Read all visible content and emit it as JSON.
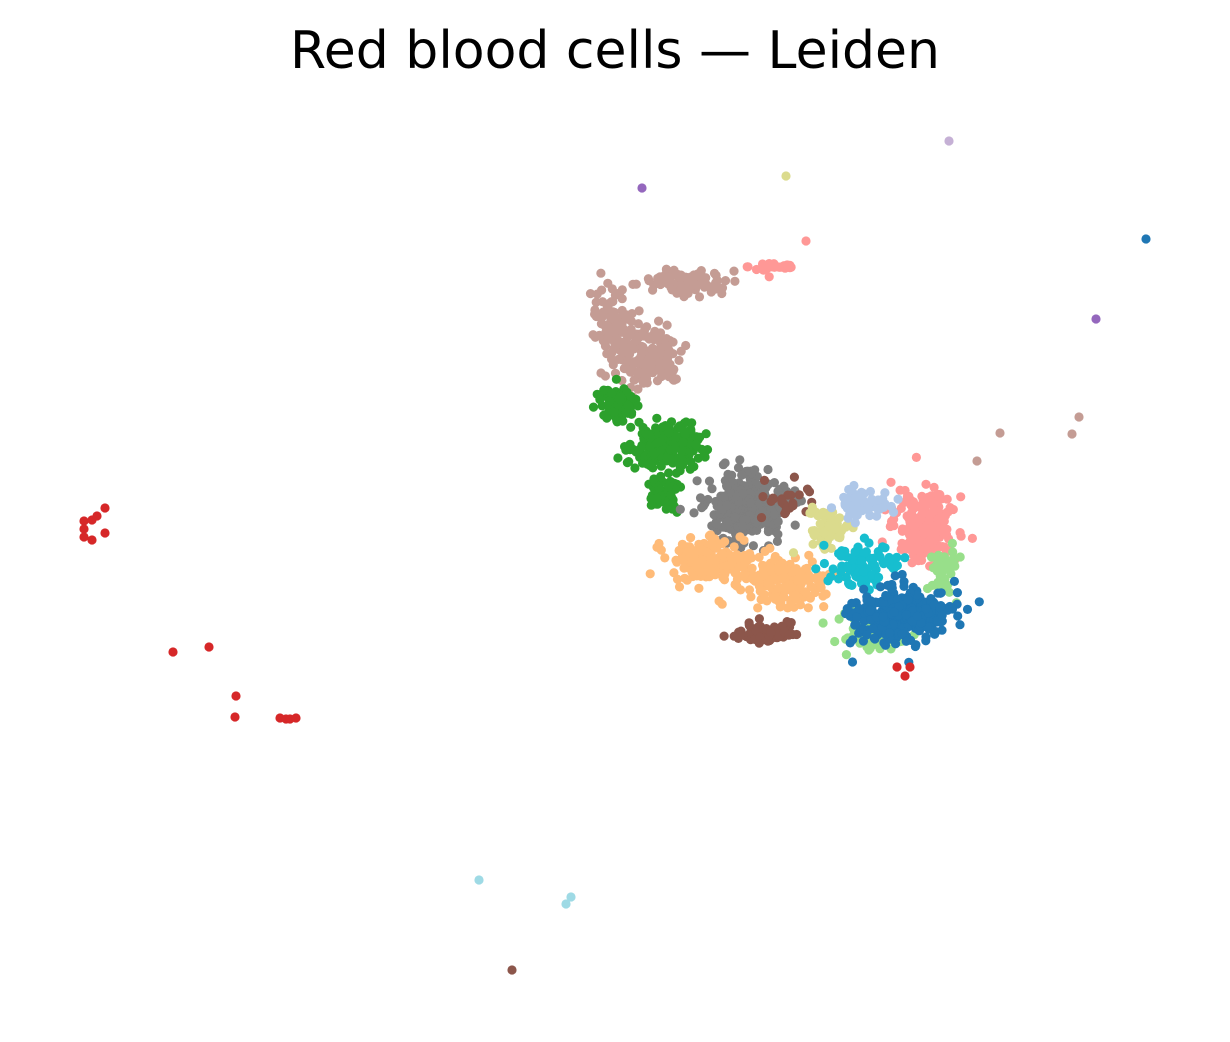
{
  "chart_data": {
    "type": "scatter",
    "title": "Red blood cells — Leiden",
    "xlabel": "",
    "ylabel": "",
    "axes_visible": false,
    "grid": false,
    "legend": "none",
    "series": [
      {
        "color": "#c49c94",
        "clusters": [
          {
            "center": [
              645,
              355
            ],
            "spread": [
              32,
              28
            ],
            "count": 160
          },
          {
            "center": [
              685,
              283
            ],
            "spread": [
              30,
              10
            ],
            "count": 100
          },
          {
            "center": [
              612,
              318
            ],
            "spread": [
              18,
              22
            ],
            "count": 80
          }
        ],
        "points": [
          [
            1000,
            433
          ],
          [
            977,
            461
          ],
          [
            1072,
            434
          ],
          [
            1079,
            417
          ]
        ]
      },
      {
        "color": "#ff9896",
        "clusters": [
          {
            "center": [
              775,
              267
            ],
            "spread": [
              22,
              5
            ],
            "count": 30
          },
          {
            "center": [
              925,
              525
            ],
            "spread": [
              25,
              28
            ],
            "count": 230
          }
        ],
        "points": [
          [
            806,
            241
          ]
        ]
      },
      {
        "color": "#2ca02c",
        "clusters": [
          {
            "center": [
              618,
              405
            ],
            "spread": [
              14,
              15
            ],
            "count": 110
          },
          {
            "center": [
              665,
              445
            ],
            "spread": [
              30,
              20
            ],
            "count": 200
          },
          {
            "center": [
              665,
              495
            ],
            "spread": [
              12,
              14
            ],
            "count": 50
          }
        ]
      },
      {
        "color": "#7f7f7f",
        "clusters": [
          {
            "center": [
              748,
              507
            ],
            "spread": [
              30,
              25
            ],
            "count": 380
          }
        ]
      },
      {
        "color": "#ffbb78",
        "clusters": [
          {
            "center": [
              708,
              560
            ],
            "spread": [
              32,
              18
            ],
            "count": 150
          },
          {
            "center": [
              778,
              580
            ],
            "spread": [
              38,
              22
            ],
            "count": 190
          }
        ]
      },
      {
        "color": "#8c564b",
        "clusters": [
          {
            "center": [
              768,
              633
            ],
            "spread": [
              28,
              10
            ],
            "count": 70
          },
          {
            "center": [
              790,
              500
            ],
            "spread": [
              25,
              15
            ],
            "count": 25
          }
        ],
        "points": [
          [
            512,
            970
          ]
        ]
      },
      {
        "color": "#dbdb8d",
        "clusters": [
          {
            "center": [
              830,
              530
            ],
            "spread": [
              18,
              18
            ],
            "count": 60
          }
        ],
        "points": [
          [
            786,
            176
          ]
        ]
      },
      {
        "color": "#aec7e8",
        "clusters": [
          {
            "center": [
              862,
              505
            ],
            "spread": [
              22,
              12
            ],
            "count": 70
          }
        ]
      },
      {
        "color": "#98df8a",
        "clusters": [
          {
            "center": [
              870,
              635
            ],
            "spread": [
              28,
              15
            ],
            "count": 80
          },
          {
            "center": [
              945,
              570
            ],
            "spread": [
              12,
              20
            ],
            "count": 40
          }
        ]
      },
      {
        "color": "#17becf",
        "clusters": [
          {
            "center": [
              860,
              565
            ],
            "spread": [
              30,
              20
            ],
            "count": 80
          }
        ]
      },
      {
        "color": "#1f77b4",
        "clusters": [
          {
            "center": [
              900,
              615
            ],
            "spread": [
              40,
              22
            ],
            "count": 360
          }
        ],
        "points": [
          [
            1146,
            239
          ]
        ]
      },
      {
        "color": "#d62728",
        "points": [
          [
            84,
            521
          ],
          [
            92,
            520
          ],
          [
            97,
            516
          ],
          [
            105,
            508
          ],
          [
            84,
            529
          ],
          [
            84,
            537
          ],
          [
            92,
            540
          ],
          [
            105,
            533
          ],
          [
            173,
            652
          ],
          [
            209,
            647
          ],
          [
            236,
            696
          ],
          [
            235,
            717
          ],
          [
            280,
            718
          ],
          [
            286,
            719
          ],
          [
            290,
            719
          ],
          [
            296,
            718
          ],
          [
            905,
            676
          ],
          [
            910,
            667
          ],
          [
            897,
            667
          ]
        ]
      },
      {
        "color": "#9467bd",
        "points": [
          [
            642,
            188
          ],
          [
            1096,
            319
          ]
        ]
      },
      {
        "color": "#c5b0d5",
        "points": [
          [
            949,
            141
          ]
        ]
      },
      {
        "color": "#9edae5",
        "points": [
          [
            479,
            880
          ],
          [
            571,
            897
          ],
          [
            566,
            904
          ]
        ]
      }
    ]
  }
}
